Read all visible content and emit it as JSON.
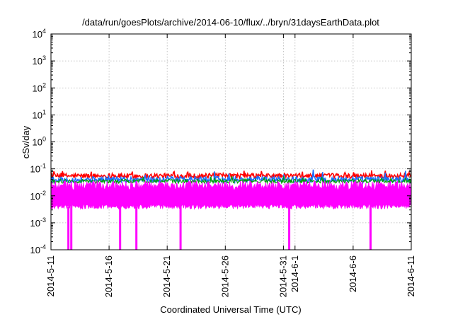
{
  "chart_data": {
    "type": "area",
    "title": "/data/run/goesPlots/archive/2014-06-10/flux/../bryn/31daysEarthData.plot",
    "xlabel": "Coordinated Universal Time (UTC)",
    "ylabel": "cSv/day",
    "yscale": "log",
    "ylim": [
      0.0001,
      10000
    ],
    "yticks": [
      {
        "value": 0.0001,
        "base": "10",
        "exp": "-4"
      },
      {
        "value": 0.001,
        "base": "10",
        "exp": "-3"
      },
      {
        "value": 0.01,
        "base": "10",
        "exp": "-2"
      },
      {
        "value": 0.1,
        "base": "10",
        "exp": "-1"
      },
      {
        "value": 1,
        "base": "10",
        "exp": "0"
      },
      {
        "value": 10,
        "base": "10",
        "exp": "1"
      },
      {
        "value": 100,
        "base": "10",
        "exp": "2"
      },
      {
        "value": 1000,
        "base": "10",
        "exp": "3"
      },
      {
        "value": 10000,
        "base": "10",
        "exp": "4"
      }
    ],
    "xlim": [
      "2014-05-11",
      "2014-06-11"
    ],
    "xticks": [
      "2014-5-11",
      "2014-5-16",
      "2014-5-21",
      "2014-5-26",
      "2014-5-31",
      "2014-6-1",
      "2014-6-6",
      "2014-6-11"
    ],
    "xtick_days": [
      0,
      5,
      10,
      15,
      20,
      21,
      26,
      31
    ],
    "grid": true,
    "legend": "none",
    "series": [
      {
        "color": "#ff0000",
        "typical": 0.055,
        "max": 0.09
      },
      {
        "color": "#00a000",
        "typical": 0.035,
        "max": 0.055
      },
      {
        "color": "#1e6fff",
        "typical": 0.04,
        "max": 0.1
      },
      {
        "color": "#ff00ff",
        "typical": 0.012,
        "min": 0.004,
        "max": 0.03
      }
    ],
    "dropouts_days": [
      1.5,
      1.75,
      5.95,
      7.35,
      11.15,
      20.5,
      27.5
    ]
  }
}
